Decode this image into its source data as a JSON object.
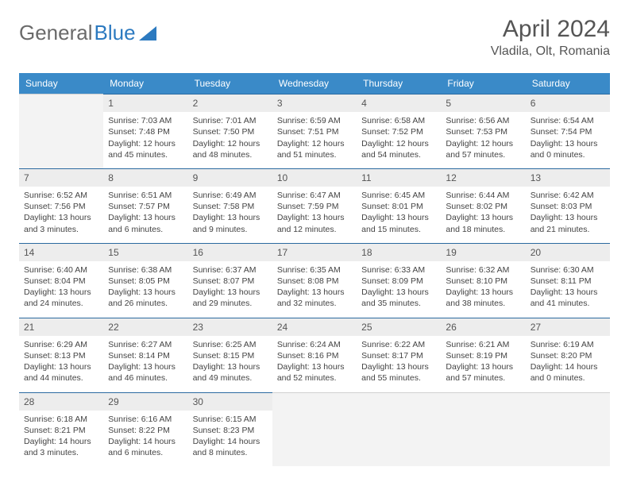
{
  "logo": {
    "text1": "General",
    "text2": "Blue"
  },
  "title": "April 2024",
  "location": "Vladila, Olt, Romania",
  "colors": {
    "header_bg": "#3a8ac8",
    "header_text": "#ffffff",
    "border": "#2b6aa0",
    "daynum_bg": "#ededed",
    "blank_bg": "#f3f3f3",
    "body_text": "#444444",
    "logo_gray": "#6a6a6a",
    "logo_blue": "#2c7ac0"
  },
  "daynames": [
    "Sunday",
    "Monday",
    "Tuesday",
    "Wednesday",
    "Thursday",
    "Friday",
    "Saturday"
  ],
  "weeks": [
    [
      {
        "blank": true
      },
      {
        "n": "1",
        "sr": "Sunrise: 7:03 AM",
        "ss": "Sunset: 7:48 PM",
        "d1": "Daylight: 12 hours",
        "d2": "and 45 minutes."
      },
      {
        "n": "2",
        "sr": "Sunrise: 7:01 AM",
        "ss": "Sunset: 7:50 PM",
        "d1": "Daylight: 12 hours",
        "d2": "and 48 minutes."
      },
      {
        "n": "3",
        "sr": "Sunrise: 6:59 AM",
        "ss": "Sunset: 7:51 PM",
        "d1": "Daylight: 12 hours",
        "d2": "and 51 minutes."
      },
      {
        "n": "4",
        "sr": "Sunrise: 6:58 AM",
        "ss": "Sunset: 7:52 PM",
        "d1": "Daylight: 12 hours",
        "d2": "and 54 minutes."
      },
      {
        "n": "5",
        "sr": "Sunrise: 6:56 AM",
        "ss": "Sunset: 7:53 PM",
        "d1": "Daylight: 12 hours",
        "d2": "and 57 minutes."
      },
      {
        "n": "6",
        "sr": "Sunrise: 6:54 AM",
        "ss": "Sunset: 7:54 PM",
        "d1": "Daylight: 13 hours",
        "d2": "and 0 minutes."
      }
    ],
    [
      {
        "n": "7",
        "sr": "Sunrise: 6:52 AM",
        "ss": "Sunset: 7:56 PM",
        "d1": "Daylight: 13 hours",
        "d2": "and 3 minutes."
      },
      {
        "n": "8",
        "sr": "Sunrise: 6:51 AM",
        "ss": "Sunset: 7:57 PM",
        "d1": "Daylight: 13 hours",
        "d2": "and 6 minutes."
      },
      {
        "n": "9",
        "sr": "Sunrise: 6:49 AM",
        "ss": "Sunset: 7:58 PM",
        "d1": "Daylight: 13 hours",
        "d2": "and 9 minutes."
      },
      {
        "n": "10",
        "sr": "Sunrise: 6:47 AM",
        "ss": "Sunset: 7:59 PM",
        "d1": "Daylight: 13 hours",
        "d2": "and 12 minutes."
      },
      {
        "n": "11",
        "sr": "Sunrise: 6:45 AM",
        "ss": "Sunset: 8:01 PM",
        "d1": "Daylight: 13 hours",
        "d2": "and 15 minutes."
      },
      {
        "n": "12",
        "sr": "Sunrise: 6:44 AM",
        "ss": "Sunset: 8:02 PM",
        "d1": "Daylight: 13 hours",
        "d2": "and 18 minutes."
      },
      {
        "n": "13",
        "sr": "Sunrise: 6:42 AM",
        "ss": "Sunset: 8:03 PM",
        "d1": "Daylight: 13 hours",
        "d2": "and 21 minutes."
      }
    ],
    [
      {
        "n": "14",
        "sr": "Sunrise: 6:40 AM",
        "ss": "Sunset: 8:04 PM",
        "d1": "Daylight: 13 hours",
        "d2": "and 24 minutes."
      },
      {
        "n": "15",
        "sr": "Sunrise: 6:38 AM",
        "ss": "Sunset: 8:05 PM",
        "d1": "Daylight: 13 hours",
        "d2": "and 26 minutes."
      },
      {
        "n": "16",
        "sr": "Sunrise: 6:37 AM",
        "ss": "Sunset: 8:07 PM",
        "d1": "Daylight: 13 hours",
        "d2": "and 29 minutes."
      },
      {
        "n": "17",
        "sr": "Sunrise: 6:35 AM",
        "ss": "Sunset: 8:08 PM",
        "d1": "Daylight: 13 hours",
        "d2": "and 32 minutes."
      },
      {
        "n": "18",
        "sr": "Sunrise: 6:33 AM",
        "ss": "Sunset: 8:09 PM",
        "d1": "Daylight: 13 hours",
        "d2": "and 35 minutes."
      },
      {
        "n": "19",
        "sr": "Sunrise: 6:32 AM",
        "ss": "Sunset: 8:10 PM",
        "d1": "Daylight: 13 hours",
        "d2": "and 38 minutes."
      },
      {
        "n": "20",
        "sr": "Sunrise: 6:30 AM",
        "ss": "Sunset: 8:11 PM",
        "d1": "Daylight: 13 hours",
        "d2": "and 41 minutes."
      }
    ],
    [
      {
        "n": "21",
        "sr": "Sunrise: 6:29 AM",
        "ss": "Sunset: 8:13 PM",
        "d1": "Daylight: 13 hours",
        "d2": "and 44 minutes."
      },
      {
        "n": "22",
        "sr": "Sunrise: 6:27 AM",
        "ss": "Sunset: 8:14 PM",
        "d1": "Daylight: 13 hours",
        "d2": "and 46 minutes."
      },
      {
        "n": "23",
        "sr": "Sunrise: 6:25 AM",
        "ss": "Sunset: 8:15 PM",
        "d1": "Daylight: 13 hours",
        "d2": "and 49 minutes."
      },
      {
        "n": "24",
        "sr": "Sunrise: 6:24 AM",
        "ss": "Sunset: 8:16 PM",
        "d1": "Daylight: 13 hours",
        "d2": "and 52 minutes."
      },
      {
        "n": "25",
        "sr": "Sunrise: 6:22 AM",
        "ss": "Sunset: 8:17 PM",
        "d1": "Daylight: 13 hours",
        "d2": "and 55 minutes."
      },
      {
        "n": "26",
        "sr": "Sunrise: 6:21 AM",
        "ss": "Sunset: 8:19 PM",
        "d1": "Daylight: 13 hours",
        "d2": "and 57 minutes."
      },
      {
        "n": "27",
        "sr": "Sunrise: 6:19 AM",
        "ss": "Sunset: 8:20 PM",
        "d1": "Daylight: 14 hours",
        "d2": "and 0 minutes."
      }
    ],
    [
      {
        "n": "28",
        "sr": "Sunrise: 6:18 AM",
        "ss": "Sunset: 8:21 PM",
        "d1": "Daylight: 14 hours",
        "d2": "and 3 minutes."
      },
      {
        "n": "29",
        "sr": "Sunrise: 6:16 AM",
        "ss": "Sunset: 8:22 PM",
        "d1": "Daylight: 14 hours",
        "d2": "and 6 minutes."
      },
      {
        "n": "30",
        "sr": "Sunrise: 6:15 AM",
        "ss": "Sunset: 8:23 PM",
        "d1": "Daylight: 14 hours",
        "d2": "and 8 minutes."
      },
      {
        "blank": true
      },
      {
        "blank": true
      },
      {
        "blank": true
      },
      {
        "blank": true
      }
    ]
  ]
}
